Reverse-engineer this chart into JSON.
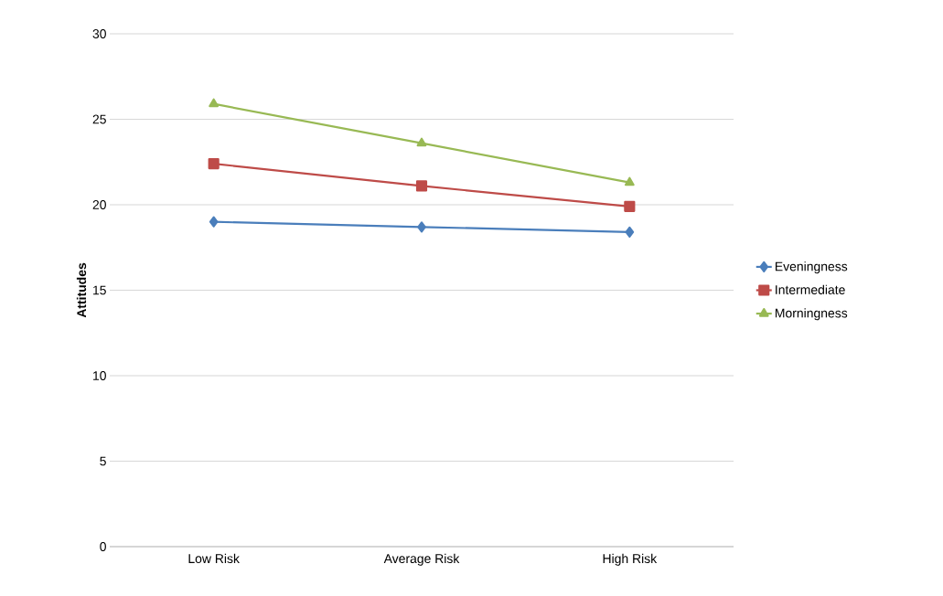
{
  "chart_data": {
    "type": "line",
    "ylabel": "Attitudes",
    "categories": [
      "Low Risk",
      "Average Risk",
      "High Risk"
    ],
    "series": [
      {
        "name": "Eveningness",
        "color": "#4a7ebb",
        "marker": "diamond",
        "values": [
          19.0,
          18.7,
          18.4
        ]
      },
      {
        "name": "Intermediate",
        "color": "#be4b48",
        "marker": "square",
        "values": [
          22.4,
          21.1,
          19.9
        ]
      },
      {
        "name": "Morningness",
        "color": "#98b954",
        "marker": "triangle",
        "values": [
          25.9,
          23.6,
          21.3
        ]
      }
    ],
    "ylim": [
      0,
      30
    ],
    "yticks": [
      0,
      5,
      10,
      15,
      20,
      25,
      30
    ],
    "grid": "y",
    "legend": "right",
    "line_style": "solid"
  }
}
